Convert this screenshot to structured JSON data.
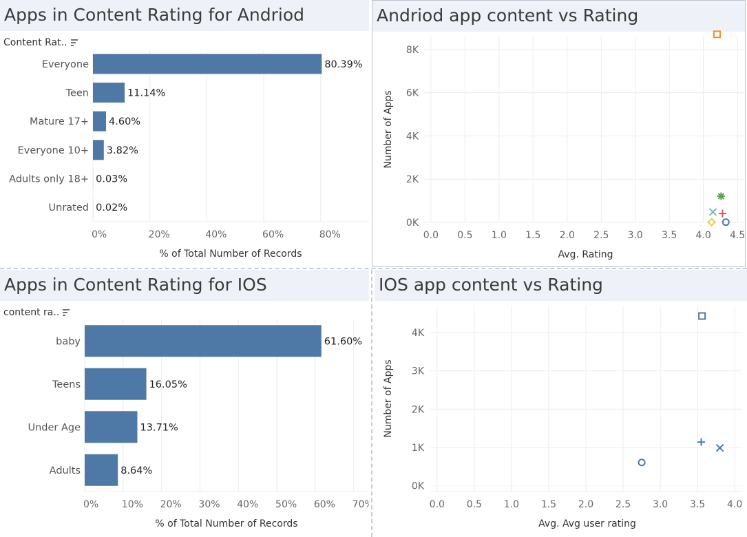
{
  "panels": {
    "android_bar": {
      "title": "Apps in Content Rating for Andriod",
      "header": "Content Rat.."
    },
    "android_scatter": {
      "title": "Andriod app content vs Rating"
    },
    "ios_bar": {
      "title": "Apps in Content Rating for IOS",
      "header": "content ra.."
    },
    "ios_scatter": {
      "title": "IOS app content vs Rating"
    }
  },
  "chart_data": [
    {
      "id": "android_bar",
      "type": "bar",
      "orientation": "horizontal",
      "title": "Apps in Content Rating for Andriod",
      "categories": [
        "Everyone",
        "Teen",
        "Mature 17+",
        "Everyone 10+",
        "Adults only 18+",
        "Unrated"
      ],
      "values": [
        80.39,
        11.14,
        4.6,
        3.82,
        0.03,
        0.02
      ],
      "labels": [
        "80.39%",
        "11.14%",
        "4.60%",
        "3.82%",
        "0.03%",
        "0.02%"
      ],
      "xlabel": "% of Total Number of Records",
      "xticks": [
        "0%",
        "20%",
        "40%",
        "60%",
        "80%"
      ],
      "xlim": [
        0,
        97
      ],
      "color": "#4e79a7"
    },
    {
      "id": "android_scatter",
      "type": "scatter",
      "title": "Andriod app content vs Rating",
      "xlabel": "Avg. Rating",
      "ylabel": "Number of Apps",
      "xticks": [
        "0.0",
        "0.5",
        "1.0",
        "1.5",
        "2.0",
        "2.5",
        "3.0",
        "3.5",
        "4.0",
        "4.5"
      ],
      "yticks": [
        "0K",
        "2K",
        "4K",
        "6K",
        "8K"
      ],
      "xlim": [
        -0.1,
        4.6
      ],
      "ylim": [
        0,
        8600
      ],
      "points": [
        {
          "x": 4.2,
          "y": 8700,
          "shape": "square",
          "color": "#f28e2b"
        },
        {
          "x": 4.26,
          "y": 1210,
          "shape": "asterisk",
          "color": "#59a14f"
        },
        {
          "x": 4.14,
          "y": 480,
          "shape": "x",
          "color": "#76b7b2"
        },
        {
          "x": 4.28,
          "y": 410,
          "shape": "plus",
          "color": "#e15759"
        },
        {
          "x": 4.12,
          "y": 10,
          "shape": "diamond",
          "color": "#edc948"
        },
        {
          "x": 4.33,
          "y": 10,
          "shape": "circle",
          "color": "#4e79a7"
        }
      ]
    },
    {
      "id": "ios_bar",
      "type": "bar",
      "orientation": "horizontal",
      "title": "Apps in Content Rating for IOS",
      "categories": [
        "baby",
        "Teens",
        "Under Age",
        "Adults"
      ],
      "values": [
        61.6,
        16.05,
        13.71,
        8.64
      ],
      "labels": [
        "61.60%",
        "16.05%",
        "13.71%",
        "8.64%"
      ],
      "xlabel": "% of Total Number of Records",
      "xticks": [
        "0%",
        "10%",
        "20%",
        "30%",
        "40%",
        "50%",
        "60%",
        "70%"
      ],
      "xlim": [
        0,
        74
      ],
      "color": "#4e79a7"
    },
    {
      "id": "ios_scatter",
      "type": "scatter",
      "title": "IOS app content vs Rating",
      "xlabel": "Avg. Avg user rating",
      "ylabel": "Number of Apps",
      "xticks": [
        "0.0",
        "0.5",
        "1.0",
        "1.5",
        "2.0",
        "2.5",
        "3.0",
        "3.5",
        "4.0"
      ],
      "yticks": [
        "0K",
        "1K",
        "2K",
        "3K",
        "4K"
      ],
      "xlim": [
        -0.1,
        4.1
      ],
      "ylim": [
        -150,
        4700
      ],
      "points": [
        {
          "x": 3.56,
          "y": 4430,
          "shape": "square",
          "color": "#4e79a7"
        },
        {
          "x": 3.55,
          "y": 1140,
          "shape": "plus",
          "color": "#4e79a7"
        },
        {
          "x": 3.8,
          "y": 990,
          "shape": "x",
          "color": "#4e79a7"
        },
        {
          "x": 2.75,
          "y": 610,
          "shape": "circle",
          "color": "#4e79a7"
        }
      ]
    }
  ]
}
